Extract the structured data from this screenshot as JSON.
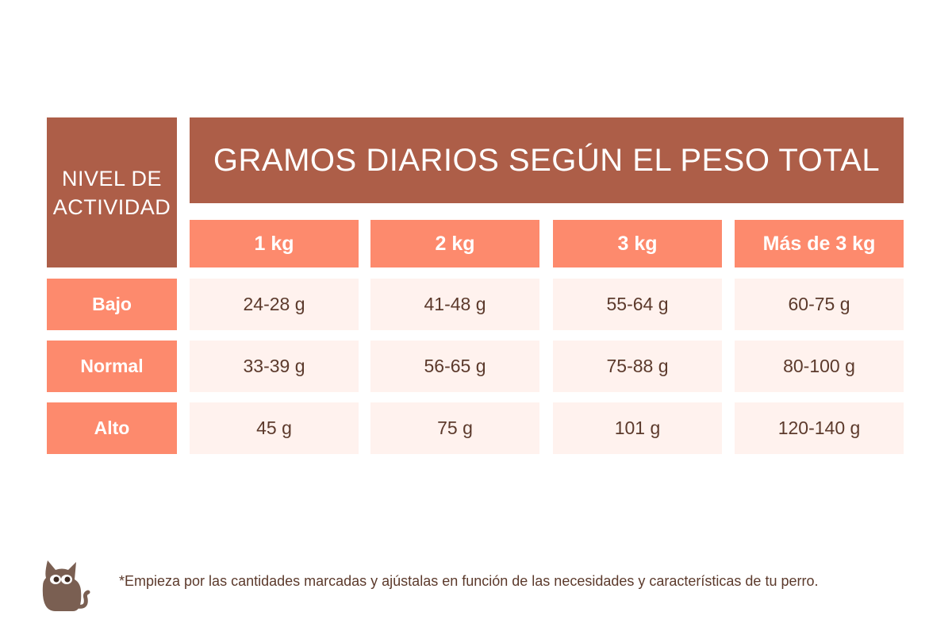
{
  "table": {
    "level_header": "NIVEL DE ACTIVIDAD",
    "title": "GRAMOS DIARIOS SEGÚN EL PESO TOTAL",
    "columns": [
      "1 kg",
      "2 kg",
      "3 kg",
      "Más de 3 kg"
    ],
    "rows": [
      {
        "label": "Bajo",
        "values": [
          "24-28 g",
          "41-48 g",
          "55-64 g",
          "60-75 g"
        ]
      },
      {
        "label": "Normal",
        "values": [
          "33-39 g",
          "56-65 g",
          "75-88 g",
          "80-100 g"
        ]
      },
      {
        "label": "Alto",
        "values": [
          "45 g",
          "75 g",
          "101 g",
          "120-140 g"
        ]
      }
    ]
  },
  "footnote": "*Empieza por las cantidades marcadas y ajústalas en función de las necesidades y características de tu perro.",
  "icons": {
    "logo": "cat-icon"
  },
  "colors": {
    "dark": "#ad5e48",
    "accent": "#fd8a6d",
    "light": "#fff2ee",
    "text": "#5c3a2c"
  }
}
